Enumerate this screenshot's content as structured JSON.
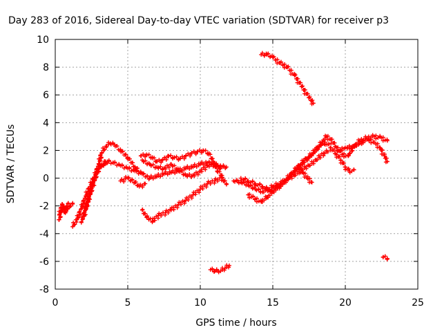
{
  "chart_data": {
    "type": "scatter",
    "title": "Day 283 of 2016, Sidereal Day-to-day VTEC variation (SDTVAR) for receiver p3",
    "xlabel": "GPS time / hours",
    "ylabel": "SDTVAR / TECUs",
    "xlim": [
      0,
      25
    ],
    "ylim": [
      -8,
      10
    ],
    "xticks": [
      "0",
      "5",
      "10",
      "15",
      "20",
      "25"
    ],
    "yticks": [
      "-8",
      "-6",
      "-4",
      "-2",
      "0",
      "2",
      "4",
      "6",
      "8",
      "10"
    ],
    "grid": true,
    "marker": "+",
    "series_color": "#ff0000",
    "tracks": [
      [
        [
          0.25,
          -3.0
        ],
        [
          0.4,
          -2.4
        ],
        [
          0.6,
          -2.0
        ],
        [
          0.8,
          -2.2
        ],
        [
          1.0,
          -2.0
        ],
        [
          1.2,
          -1.8
        ]
      ],
      [
        [
          0.3,
          -2.6
        ],
        [
          0.5,
          -1.9
        ],
        [
          0.7,
          -2.5
        ],
        [
          0.9,
          -1.8
        ]
      ],
      [
        [
          1.2,
          -3.5
        ],
        [
          1.5,
          -3.0
        ],
        [
          1.8,
          -2.2
        ],
        [
          2.1,
          -1.3
        ],
        [
          2.4,
          -0.6
        ],
        [
          2.7,
          0.1
        ],
        [
          3.0,
          0.7
        ],
        [
          3.3,
          1.0
        ],
        [
          3.6,
          1.2
        ],
        [
          4.0,
          1.1
        ],
        [
          4.5,
          0.9
        ],
        [
          5.0,
          0.7
        ],
        [
          5.5,
          0.5
        ],
        [
          6.0,
          0.3
        ],
        [
          6.5,
          0.0
        ],
        [
          7.0,
          0.1
        ],
        [
          7.5,
          0.3
        ],
        [
          8.0,
          0.4
        ],
        [
          8.5,
          0.5
        ],
        [
          9.0,
          0.7
        ],
        [
          9.5,
          0.8
        ],
        [
          10.0,
          1.0
        ],
        [
          10.5,
          1.1
        ],
        [
          11.0,
          1.0
        ],
        [
          11.5,
          0.8
        ],
        [
          11.8,
          0.8
        ]
      ],
      [
        [
          1.8,
          -3.2
        ],
        [
          2.1,
          -2.2
        ],
        [
          2.4,
          -1.0
        ],
        [
          2.7,
          0.0
        ],
        [
          3.0,
          1.0
        ],
        [
          3.2,
          1.8
        ],
        [
          3.5,
          2.3
        ],
        [
          3.8,
          2.5
        ],
        [
          4.1,
          2.4
        ],
        [
          4.5,
          2.0
        ],
        [
          5.0,
          1.5
        ],
        [
          5.5,
          0.8
        ],
        [
          5.9,
          0.4
        ]
      ],
      [
        [
          2.0,
          -2.6
        ],
        [
          2.3,
          -1.5
        ],
        [
          2.6,
          -0.5
        ],
        [
          2.9,
          0.5
        ],
        [
          3.2,
          1.0
        ],
        [
          3.6,
          1.1
        ]
      ],
      [
        [
          4.5,
          -0.2
        ],
        [
          5.0,
          0.0
        ],
        [
          5.5,
          -0.3
        ],
        [
          5.8,
          -0.6
        ],
        [
          6.2,
          -0.4
        ]
      ],
      [
        [
          5.9,
          1.6
        ],
        [
          6.3,
          1.7
        ],
        [
          6.7,
          1.5
        ],
        [
          7.0,
          1.2
        ],
        [
          7.4,
          1.3
        ],
        [
          7.8,
          1.6
        ],
        [
          8.2,
          1.5
        ],
        [
          8.6,
          1.4
        ],
        [
          9.0,
          1.6
        ],
        [
          9.4,
          1.8
        ],
        [
          9.8,
          1.9
        ],
        [
          10.2,
          2.0
        ],
        [
          10.6,
          1.8
        ],
        [
          10.9,
          1.2
        ],
        [
          11.2,
          0.5
        ],
        [
          11.5,
          0.2
        ]
      ],
      [
        [
          6.0,
          1.3
        ],
        [
          6.5,
          1.0
        ],
        [
          7.0,
          0.8
        ],
        [
          7.5,
          0.7
        ],
        [
          8.0,
          1.0
        ],
        [
          8.5,
          0.6
        ],
        [
          9.0,
          0.2
        ],
        [
          9.5,
          0.2
        ],
        [
          10.0,
          0.5
        ],
        [
          10.5,
          0.9
        ],
        [
          11.0,
          1.0
        ],
        [
          11.4,
          0.7
        ]
      ],
      [
        [
          6.0,
          -2.3
        ],
        [
          6.3,
          -2.8
        ],
        [
          6.7,
          -3.1
        ],
        [
          7.1,
          -2.7
        ],
        [
          7.6,
          -2.5
        ],
        [
          8.0,
          -2.3
        ],
        [
          8.5,
          -1.9
        ],
        [
          9.0,
          -1.6
        ],
        [
          9.5,
          -1.2
        ],
        [
          10.0,
          -0.8
        ],
        [
          10.5,
          -0.4
        ],
        [
          11.0,
          -0.2
        ],
        [
          11.5,
          0.0
        ],
        [
          11.8,
          -0.4
        ]
      ],
      [
        [
          10.7,
          -6.6
        ],
        [
          11.0,
          -6.7
        ],
        [
          11.4,
          -6.7
        ],
        [
          11.7,
          -6.5
        ],
        [
          12.0,
          -6.3
        ]
      ],
      [
        [
          12.3,
          -0.2
        ],
        [
          12.8,
          -0.3
        ],
        [
          13.3,
          -0.5
        ],
        [
          13.8,
          -0.8
        ],
        [
          14.3,
          -1.0
        ],
        [
          14.7,
          -0.8
        ],
        [
          15.0,
          -0.6
        ],
        [
          15.5,
          -0.4
        ],
        [
          16.0,
          -0.1
        ],
        [
          16.5,
          0.2
        ],
        [
          17.0,
          0.6
        ],
        [
          17.5,
          0.9
        ],
        [
          18.0,
          1.3
        ],
        [
          18.5,
          1.8
        ],
        [
          18.8,
          1.9
        ]
      ],
      [
        [
          12.8,
          0.0
        ],
        [
          13.3,
          -0.2
        ],
        [
          13.8,
          -0.4
        ],
        [
          14.3,
          -0.6
        ],
        [
          14.8,
          -0.9
        ],
        [
          15.3,
          -0.6
        ],
        [
          15.8,
          -0.2
        ],
        [
          16.3,
          0.3
        ],
        [
          16.8,
          0.9
        ],
        [
          17.3,
          1.4
        ],
        [
          17.8,
          1.8
        ],
        [
          18.2,
          2.3
        ],
        [
          18.6,
          2.6
        ],
        [
          19.0,
          2.2
        ],
        [
          19.4,
          1.7
        ],
        [
          19.7,
          1.3
        ],
        [
          20.0,
          0.8
        ],
        [
          20.3,
          0.5
        ],
        [
          20.6,
          0.6
        ]
      ],
      [
        [
          13.3,
          -1.2
        ],
        [
          13.8,
          -1.5
        ],
        [
          14.2,
          -1.7
        ],
        [
          14.6,
          -1.4
        ],
        [
          15.0,
          -1.0
        ],
        [
          15.5,
          -0.6
        ],
        [
          16.0,
          -0.1
        ],
        [
          16.5,
          0.5
        ],
        [
          17.0,
          1.0
        ],
        [
          17.5,
          1.5
        ],
        [
          18.0,
          2.1
        ],
        [
          18.4,
          2.6
        ],
        [
          18.7,
          3.0
        ],
        [
          19.0,
          2.8
        ],
        [
          19.4,
          2.2
        ],
        [
          19.8,
          1.7
        ],
        [
          20.2,
          1.6
        ],
        [
          20.6,
          2.3
        ],
        [
          21.0,
          2.7
        ],
        [
          21.5,
          2.9
        ],
        [
          22.0,
          3.0
        ],
        [
          22.5,
          2.9
        ],
        [
          22.9,
          2.7
        ]
      ],
      [
        [
          16.8,
          0.7
        ],
        [
          17.1,
          0.4
        ],
        [
          17.4,
          0.0
        ],
        [
          17.7,
          -0.3
        ]
      ],
      [
        [
          19.5,
          2.0
        ],
        [
          20.0,
          2.2
        ],
        [
          20.5,
          2.3
        ],
        [
          21.0,
          2.5
        ],
        [
          21.5,
          2.8
        ],
        [
          22.0,
          2.6
        ],
        [
          22.4,
          2.2
        ],
        [
          22.7,
          1.6
        ],
        [
          22.9,
          1.2
        ]
      ],
      [
        [
          14.2,
          8.9
        ],
        [
          14.6,
          8.9
        ],
        [
          15.0,
          8.7
        ],
        [
          15.5,
          8.3
        ],
        [
          16.0,
          8.0
        ],
        [
          16.5,
          7.4
        ],
        [
          17.0,
          6.6
        ],
        [
          17.5,
          5.8
        ],
        [
          17.8,
          5.4
        ]
      ],
      [
        [
          22.6,
          -5.7
        ],
        [
          22.9,
          -5.8
        ]
      ]
    ]
  }
}
